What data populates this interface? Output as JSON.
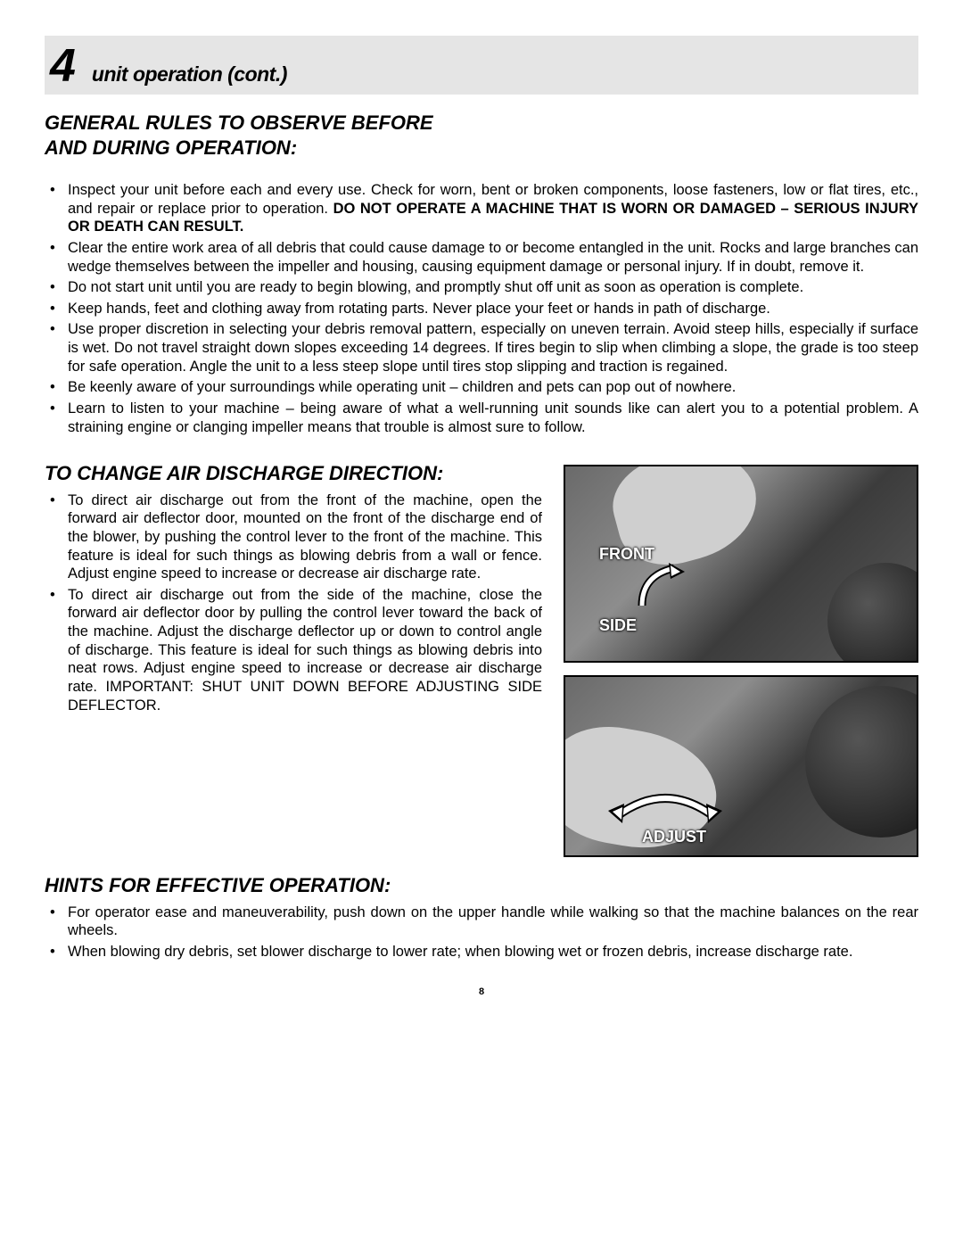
{
  "header": {
    "chapter_number": "4",
    "chapter_title": "unit operation (cont.)"
  },
  "section1": {
    "heading_line1": "GENERAL RULES TO OBSERVE BEFORE",
    "heading_line2": "AND DURING OPERATION:",
    "items": [
      {
        "pre": "Inspect your unit before each and every use.  Check for worn, bent or broken components, loose fasteners, low or flat tires, etc., and repair or replace prior to operation.  ",
        "bold": "DO NOT OPERATE A MACHINE THAT IS WORN OR DAMAGED – SERIOUS INJURY OR DEATH CAN RESULT.",
        "post": ""
      },
      {
        "pre": "Clear the entire work area of all debris that could cause damage to or become entangled in the unit.  Rocks and large branches can wedge themselves between the impeller and housing, causing equipment damage or personal injury.  If in doubt, remove it.",
        "bold": "",
        "post": ""
      },
      {
        "pre": "Do not start unit until you are ready to begin blowing, and promptly shut off unit as soon as operation is complete.",
        "bold": "",
        "post": ""
      },
      {
        "pre": "Keep hands, feet and clothing away from rotating parts.  Never place your feet or hands in path of discharge.",
        "bold": "",
        "post": ""
      },
      {
        "pre": "Use proper discretion in selecting your debris removal pattern, especially on uneven terrain.  Avoid steep hills, especially if surface is wet.  Do not travel straight down slopes exceeding 14 degrees. If tires begin to slip when climbing a slope, the grade is too steep for safe operation. Angle the unit to a less steep slope until tires stop slipping and traction is regained.",
        "bold": "",
        "post": ""
      },
      {
        "pre": "Be keenly aware of your surroundings while operating unit – children and pets can pop out of nowhere.",
        "bold": "",
        "post": ""
      },
      {
        "pre": "Learn to listen to your machine – being aware of what a well-running unit sounds like can alert you to a potential problem.  A straining engine or clanging impeller means that trouble is almost sure to follow.",
        "bold": "",
        "post": ""
      }
    ]
  },
  "section2": {
    "heading": "TO CHANGE AIR DISCHARGE DIRECTION:",
    "items": [
      "To direct air discharge out from the front of the machine, open the forward air deflector door, mounted on the front of the discharge end of the blower, by pushing the control lever to the front of the machine.  This feature is ideal for such things as blowing debris from a wall or fence. Adjust engine speed to increase or decrease air discharge rate.",
      "To direct air discharge out from the side of the machine, close the forward air deflector door by pulling the control lever toward the back of the machine.  Adjust the discharge deflector up or down to control angle of discharge.  This feature is ideal for such things as blowing debris into neat rows.  Adjust engine speed to increase or decrease air discharge rate.  IMPORTANT: SHUT UNIT DOWN BEFORE ADJUSTING SIDE DEFLECTOR."
    ],
    "figure1": {
      "label_front": "FRONT",
      "label_side": "SIDE"
    },
    "figure2": {
      "label_adjust": "ADJUST"
    }
  },
  "section3": {
    "heading": "HINTS FOR EFFECTIVE OPERATION:",
    "items": [
      "For operator ease and maneuverability, push down on the upper handle while walking so that the machine balances on the rear wheels.",
      "When blowing dry debris, set blower discharge to lower rate; when blowing wet or frozen debris, increase discharge rate."
    ]
  },
  "page_number": "8",
  "colors": {
    "header_bg": "#e5e5e5",
    "text": "#000000",
    "figure_border": "#000000"
  }
}
